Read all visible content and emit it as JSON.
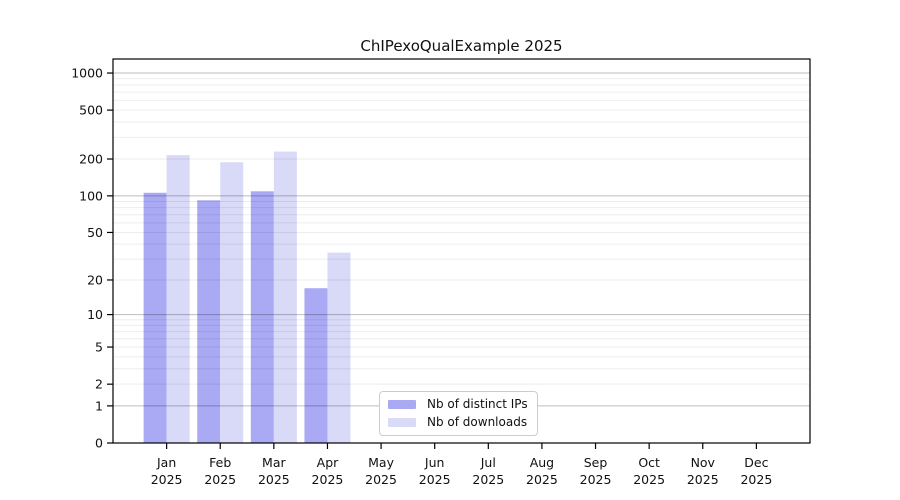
{
  "title": "ChIPexoQualExample 2025",
  "chart_data": {
    "type": "bar",
    "title": "ChIPexoQualExample 2025",
    "categories": [
      "Jan",
      "Feb",
      "Mar",
      "Apr",
      "May",
      "Jun",
      "Jul",
      "Aug",
      "Sep",
      "Oct",
      "Nov",
      "Dec"
    ],
    "x_tick_year_line": "2025",
    "series": [
      {
        "name": "Nb of distinct IPs",
        "color": "#a9a9f4",
        "values": [
          106,
          92,
          109,
          17,
          0,
          0,
          0,
          0,
          0,
          0,
          0,
          0
        ]
      },
      {
        "name": "Nb of downloads",
        "color": "#d9d9f8",
        "values": [
          215,
          188,
          230,
          34,
          0,
          0,
          0,
          0,
          0,
          0,
          0,
          0
        ]
      }
    ],
    "yscale": "log1p",
    "ylim": [
      0,
      1300
    ],
    "yticks": [
      0,
      1,
      2,
      5,
      10,
      20,
      50,
      100,
      200,
      500,
      1000
    ],
    "grid": "horizontal",
    "legend_position": "lower center",
    "colors": {
      "spine": "#000000",
      "grid_decade": "rgba(0,0,0,0.26)",
      "grid_minor": "rgba(0,0,0,0.07)",
      "tick": "#000000",
      "label": "#111111"
    }
  }
}
